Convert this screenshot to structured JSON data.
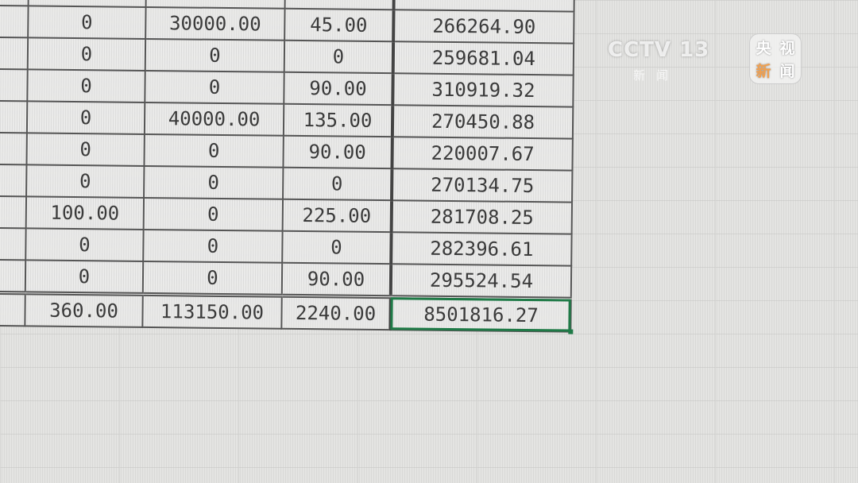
{
  "rows": [
    {
      "c1": "0",
      "c2": "30000.00",
      "c3": "45.00",
      "c4": "266264.90"
    },
    {
      "c1": "0",
      "c2": "0",
      "c3": "0",
      "c4": "259681.04"
    },
    {
      "c1": "0",
      "c2": "0",
      "c3": "90.00",
      "c4": "310919.32"
    },
    {
      "c1": "0",
      "c2": "40000.00",
      "c3": "135.00",
      "c4": "270450.88"
    },
    {
      "c1": "0",
      "c2": "0",
      "c3": "90.00",
      "c4": "220007.67"
    },
    {
      "c1": "0",
      "c2": "0",
      "c3": "0",
      "c4": "270134.75"
    },
    {
      "c1": "100.00",
      "c2": "0",
      "c3": "225.00",
      "c4": "281708.25"
    },
    {
      "c1": "0",
      "c2": "0",
      "c3": "0",
      "c4": "282396.61"
    },
    {
      "c1": "0",
      "c2": "0",
      "c3": "90.00",
      "c4": "295524.54"
    }
  ],
  "totals": {
    "c1": "360.00",
    "c2": "113150.00",
    "c3": "2240.00",
    "c4": "8501816.27"
  },
  "selection_color": "#1f7a47",
  "watermark": {
    "channel": "CCTV 13",
    "sub": "新闻"
  },
  "logo": {
    "chars": [
      "央",
      "视",
      "新",
      "闻"
    ]
  }
}
